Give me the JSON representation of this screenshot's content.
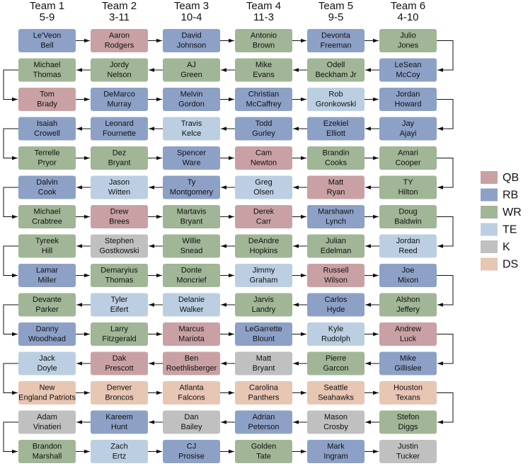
{
  "teams": [
    {
      "name": "Team 1",
      "record": "5-9"
    },
    {
      "name": "Team 2",
      "record": "3-11"
    },
    {
      "name": "Team 3",
      "record": "10-4"
    },
    {
      "name": "Team 4",
      "record": "11-3"
    },
    {
      "name": "Team 5",
      "record": "9-5"
    },
    {
      "name": "Team 6",
      "record": "4-10"
    }
  ],
  "legend": [
    {
      "label": "QB",
      "color": "#c9a1a4"
    },
    {
      "label": "RB",
      "color": "#8da1c7"
    },
    {
      "label": "WR",
      "color": "#a0b696"
    },
    {
      "label": "TE",
      "color": "#bccfe2"
    },
    {
      "label": "K",
      "color": "#c1c0c1"
    },
    {
      "label": "DS",
      "color": "#e7c6b3"
    }
  ],
  "picks": [
    [
      {
        "lines": [
          "Le'Veon",
          "Bell"
        ],
        "pos": "RB"
      },
      {
        "lines": [
          "Aaron",
          "Rodgers"
        ],
        "pos": "QB"
      },
      {
        "lines": [
          "David",
          "Johnson"
        ],
        "pos": "RB"
      },
      {
        "lines": [
          "Antonio",
          "Brown"
        ],
        "pos": "WR"
      },
      {
        "lines": [
          "Devonta",
          "Freeman"
        ],
        "pos": "RB"
      },
      {
        "lines": [
          "Julio",
          "Jones"
        ],
        "pos": "WR"
      }
    ],
    [
      {
        "lines": [
          "Michael",
          "Thomas"
        ],
        "pos": "WR"
      },
      {
        "lines": [
          "Jordy",
          "Nelson"
        ],
        "pos": "WR"
      },
      {
        "lines": [
          "AJ",
          "Green"
        ],
        "pos": "WR"
      },
      {
        "lines": [
          "Mike",
          "Evans"
        ],
        "pos": "WR"
      },
      {
        "lines": [
          "Odell",
          "Beckham Jr"
        ],
        "pos": "WR"
      },
      {
        "lines": [
          "LeSean",
          "McCoy"
        ],
        "pos": "RB"
      }
    ],
    [
      {
        "lines": [
          "Tom",
          "Brady"
        ],
        "pos": "QB"
      },
      {
        "lines": [
          "DeMarco",
          "Murray"
        ],
        "pos": "RB"
      },
      {
        "lines": [
          "Melvin",
          "Gordon"
        ],
        "pos": "RB"
      },
      {
        "lines": [
          "Christian",
          "McCaffrey"
        ],
        "pos": "RB"
      },
      {
        "lines": [
          "Rob",
          "Gronkowski"
        ],
        "pos": "TE"
      },
      {
        "lines": [
          "Jordan",
          "Howard"
        ],
        "pos": "RB"
      }
    ],
    [
      {
        "lines": [
          "Isaiah",
          "Crowell"
        ],
        "pos": "RB"
      },
      {
        "lines": [
          "Leonard",
          "Fournette"
        ],
        "pos": "RB"
      },
      {
        "lines": [
          "Travis",
          "Kelce"
        ],
        "pos": "TE"
      },
      {
        "lines": [
          "Todd",
          "Gurley"
        ],
        "pos": "RB"
      },
      {
        "lines": [
          "Ezekiel",
          "Elliott"
        ],
        "pos": "RB"
      },
      {
        "lines": [
          "Jay",
          "Ajayi"
        ],
        "pos": "RB"
      }
    ],
    [
      {
        "lines": [
          "Terrelle",
          "Pryor"
        ],
        "pos": "WR"
      },
      {
        "lines": [
          "Dez",
          "Bryant"
        ],
        "pos": "WR"
      },
      {
        "lines": [
          "Spencer",
          "Ware"
        ],
        "pos": "RB"
      },
      {
        "lines": [
          "Cam",
          "Newton"
        ],
        "pos": "QB"
      },
      {
        "lines": [
          "Brandin",
          "Cooks"
        ],
        "pos": "WR"
      },
      {
        "lines": [
          "Amari",
          "Cooper"
        ],
        "pos": "WR"
      }
    ],
    [
      {
        "lines": [
          "Dalvin",
          "Cook"
        ],
        "pos": "RB"
      },
      {
        "lines": [
          "Jason",
          "Witten"
        ],
        "pos": "TE"
      },
      {
        "lines": [
          "Ty",
          "Montgomery"
        ],
        "pos": "RB"
      },
      {
        "lines": [
          "Greg",
          "Olsen"
        ],
        "pos": "TE"
      },
      {
        "lines": [
          "Matt",
          "Ryan"
        ],
        "pos": "QB"
      },
      {
        "lines": [
          "TY",
          "Hilton"
        ],
        "pos": "WR"
      }
    ],
    [
      {
        "lines": [
          "Michael",
          "Crabtree"
        ],
        "pos": "WR"
      },
      {
        "lines": [
          "Drew",
          "Brees"
        ],
        "pos": "QB"
      },
      {
        "lines": [
          "Martavis",
          "Bryant"
        ],
        "pos": "WR"
      },
      {
        "lines": [
          "Derek",
          "Carr"
        ],
        "pos": "QB"
      },
      {
        "lines": [
          "Marshawn",
          "Lynch"
        ],
        "pos": "RB"
      },
      {
        "lines": [
          "Doug",
          "Baldwin"
        ],
        "pos": "WR"
      }
    ],
    [
      {
        "lines": [
          "Tyreek",
          "Hill"
        ],
        "pos": "WR"
      },
      {
        "lines": [
          "Stephen",
          "Gostkowski"
        ],
        "pos": "K"
      },
      {
        "lines": [
          "Willie",
          "Snead"
        ],
        "pos": "WR"
      },
      {
        "lines": [
          "DeAndre",
          "Hopkins"
        ],
        "pos": "WR"
      },
      {
        "lines": [
          "Julian",
          "Edelman"
        ],
        "pos": "WR"
      },
      {
        "lines": [
          "Jordan",
          "Reed"
        ],
        "pos": "TE"
      }
    ],
    [
      {
        "lines": [
          "Lamar",
          "Miller"
        ],
        "pos": "RB"
      },
      {
        "lines": [
          "Demaryius",
          "Thomas"
        ],
        "pos": "WR"
      },
      {
        "lines": [
          "Donte",
          "Moncrief"
        ],
        "pos": "WR"
      },
      {
        "lines": [
          "Jimmy",
          "Graham"
        ],
        "pos": "TE"
      },
      {
        "lines": [
          "Russell",
          "Wilson"
        ],
        "pos": "QB"
      },
      {
        "lines": [
          "Joe",
          "Mixon"
        ],
        "pos": "RB"
      }
    ],
    [
      {
        "lines": [
          "Devante",
          "Parker"
        ],
        "pos": "WR"
      },
      {
        "lines": [
          "Tyler",
          "Eifert"
        ],
        "pos": "TE"
      },
      {
        "lines": [
          "Delanie",
          "Walker"
        ],
        "pos": "TE"
      },
      {
        "lines": [
          "Jarvis",
          "Landry"
        ],
        "pos": "WR"
      },
      {
        "lines": [
          "Carlos",
          "Hyde"
        ],
        "pos": "RB"
      },
      {
        "lines": [
          "Alshon",
          "Jeffery"
        ],
        "pos": "WR"
      }
    ],
    [
      {
        "lines": [
          "Danny",
          "Woodhead"
        ],
        "pos": "RB"
      },
      {
        "lines": [
          "Larry",
          "Fitzgerald"
        ],
        "pos": "WR"
      },
      {
        "lines": [
          "Marcus",
          "Mariota"
        ],
        "pos": "QB"
      },
      {
        "lines": [
          "LeGarrette",
          "Blount"
        ],
        "pos": "RB"
      },
      {
        "lines": [
          "Kyle",
          "Rudolph"
        ],
        "pos": "TE"
      },
      {
        "lines": [
          "Andrew",
          "Luck"
        ],
        "pos": "QB"
      }
    ],
    [
      {
        "lines": [
          "Jack",
          "Doyle"
        ],
        "pos": "TE"
      },
      {
        "lines": [
          "Dak",
          "Prescott"
        ],
        "pos": "QB"
      },
      {
        "lines": [
          "Ben",
          "Roethlisberger"
        ],
        "pos": "QB"
      },
      {
        "lines": [
          "Matt",
          "Bryant"
        ],
        "pos": "K"
      },
      {
        "lines": [
          "Pierre",
          "Garcon"
        ],
        "pos": "WR"
      },
      {
        "lines": [
          "Mike",
          "Gillislee"
        ],
        "pos": "RB"
      }
    ],
    [
      {
        "lines": [
          "New",
          "England Patriots"
        ],
        "pos": "DS"
      },
      {
        "lines": [
          "Denver",
          "Broncos"
        ],
        "pos": "DS"
      },
      {
        "lines": [
          "Atlanta",
          "Falcons"
        ],
        "pos": "DS"
      },
      {
        "lines": [
          "Carolina",
          "Panthers"
        ],
        "pos": "DS"
      },
      {
        "lines": [
          "Seattle",
          "Seahawks"
        ],
        "pos": "DS"
      },
      {
        "lines": [
          "Houston",
          "Texans"
        ],
        "pos": "DS"
      }
    ],
    [
      {
        "lines": [
          "Adam",
          "Vinatieri"
        ],
        "pos": "K"
      },
      {
        "lines": [
          "Kareem",
          "Hunt"
        ],
        "pos": "RB"
      },
      {
        "lines": [
          "Dan",
          "Bailey"
        ],
        "pos": "K"
      },
      {
        "lines": [
          "Adrian",
          "Peterson"
        ],
        "pos": "RB"
      },
      {
        "lines": [
          "Mason",
          "Crosby"
        ],
        "pos": "K"
      },
      {
        "lines": [
          "Stefon",
          "Diggs"
        ],
        "pos": "WR"
      }
    ],
    [
      {
        "lines": [
          "Brandon",
          "Marshall"
        ],
        "pos": "WR"
      },
      {
        "lines": [
          "Zach",
          "Ertz"
        ],
        "pos": "TE"
      },
      {
        "lines": [
          "CJ",
          "Prosise"
        ],
        "pos": "RB"
      },
      {
        "lines": [
          "Golden",
          "Tate"
        ],
        "pos": "WR"
      },
      {
        "lines": [
          "Mark",
          "Ingram"
        ],
        "pos": "RB"
      },
      {
        "lines": [
          "Justin",
          "Tucker"
        ],
        "pos": "K"
      }
    ]
  ]
}
